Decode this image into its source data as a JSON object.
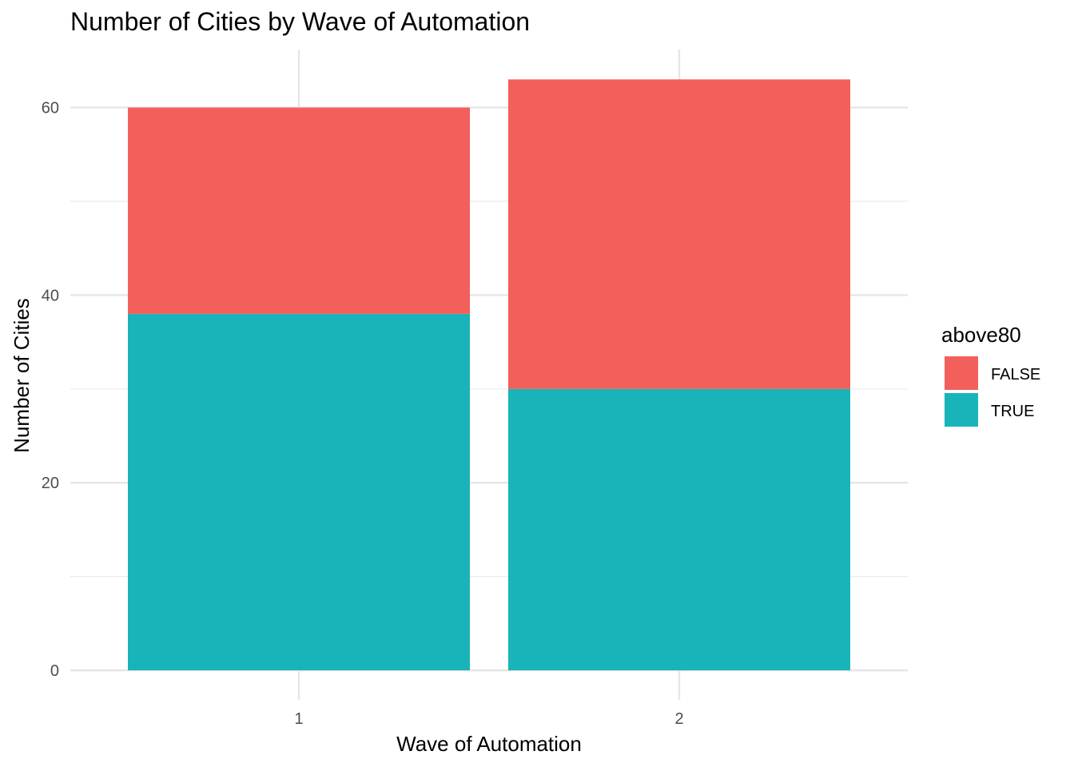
{
  "chart_data": {
    "type": "bar",
    "stacked": true,
    "title": "Number of Cities by Wave of Automation",
    "xlabel": "Wave of Automation",
    "ylabel": "Number of Cities",
    "categories": [
      "1",
      "2"
    ],
    "ylim": [
      0,
      63
    ],
    "yticks": [
      0,
      20,
      40,
      60
    ],
    "grid": true,
    "legend": {
      "title": "above80",
      "position": "right"
    },
    "series": [
      {
        "name": "TRUE",
        "color": "#19B4B9",
        "values": [
          38,
          30
        ]
      },
      {
        "name": "FALSE",
        "color": "#F3605C",
        "values": [
          22,
          33
        ]
      }
    ]
  }
}
